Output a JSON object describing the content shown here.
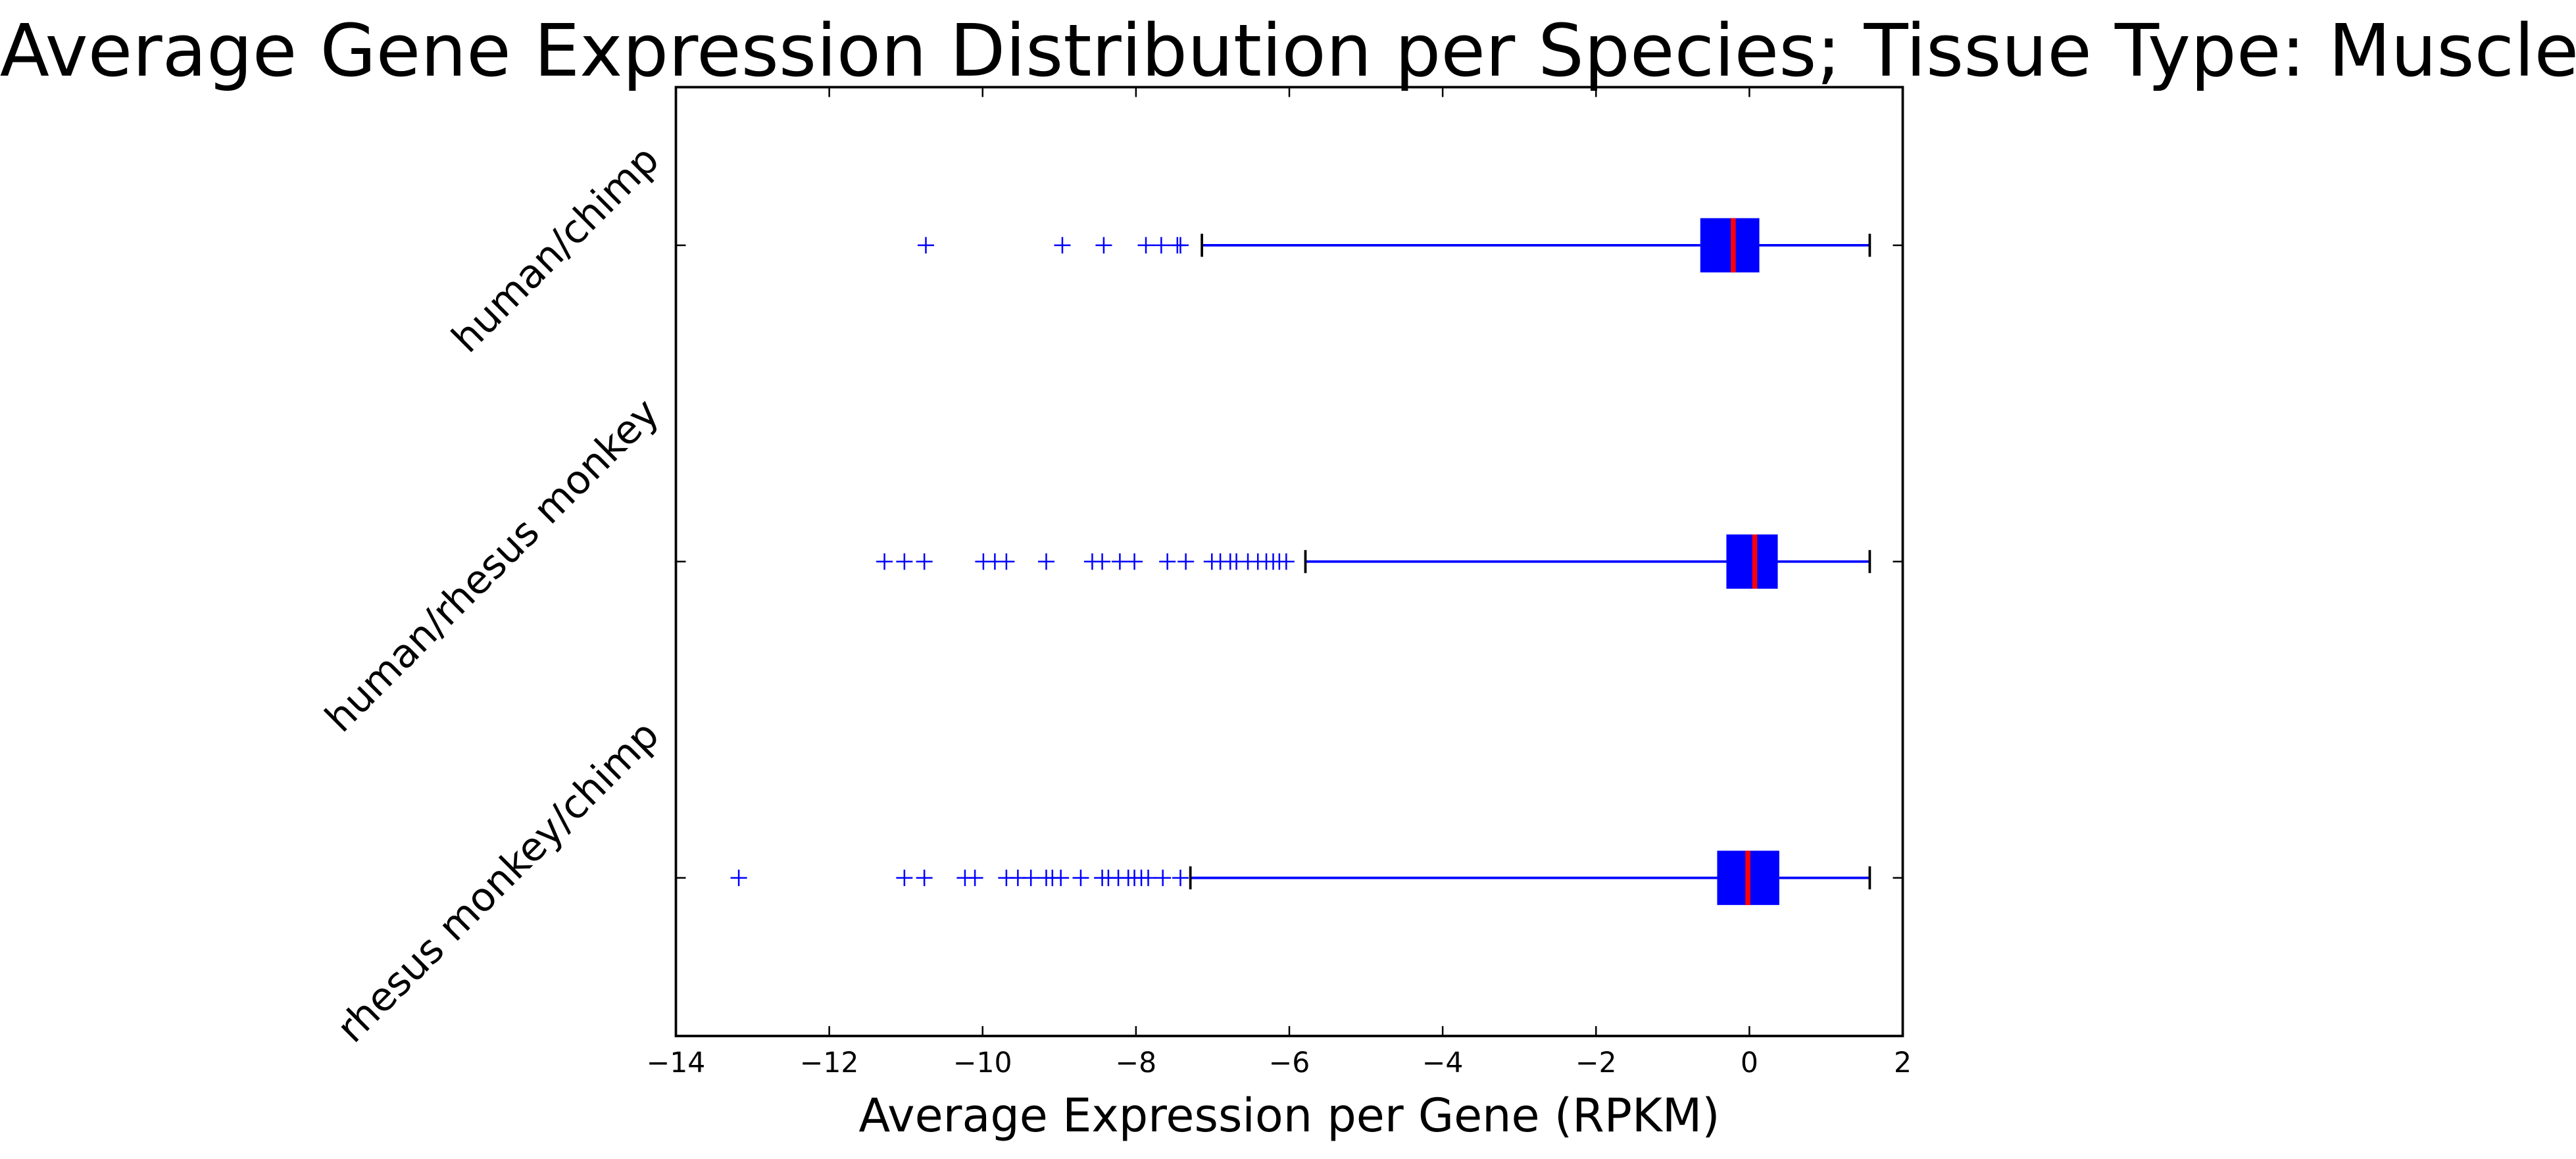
{
  "chart_data": {
    "type": "boxplot",
    "title": "Average Gene Expression Distribution per Species; Tissue Type: Muscle",
    "xlabel": "Average Expression per Gene (RPKM)",
    "categories": [
      "human/chimp",
      "human/rhesus monkey",
      "rhesus monkey/chimp"
    ],
    "boxes": [
      {
        "whislo": -7.14,
        "q1": -0.64,
        "med": -0.21,
        "q3": 0.13,
        "whishi": 1.57,
        "fliers": [
          -10.74,
          -8.96,
          -8.42,
          -7.87,
          -7.67,
          -7.46,
          -7.42
        ]
      },
      {
        "whislo": -5.79,
        "q1": -0.3,
        "med": 0.07,
        "q3": 0.37,
        "whishi": 1.57,
        "fliers": [
          -11.28,
          -11.02,
          -10.76,
          -9.99,
          -9.84,
          -9.69,
          -9.17,
          -8.57,
          -8.44,
          -8.21,
          -8.02,
          -7.59,
          -7.35,
          -7.01,
          -6.9,
          -6.77,
          -6.69,
          -6.54,
          -6.41,
          -6.3,
          -6.21,
          -6.13,
          -6.04
        ]
      },
      {
        "whislo": -7.29,
        "q1": -0.42,
        "med": -0.02,
        "q3": 0.39,
        "whishi": 1.57,
        "fliers": [
          -13.18,
          -11.02,
          -10.76,
          -10.23,
          -10.1,
          -9.69,
          -9.54,
          -9.37,
          -9.17,
          -9.09,
          -8.98,
          -8.72,
          -8.44,
          -8.36,
          -8.23,
          -8.1,
          -8.02,
          -7.93,
          -7.84,
          -7.65,
          -7.42
        ]
      }
    ],
    "xlim": [
      -14,
      2
    ],
    "xticks": [
      {
        "value": -14,
        "label": "−14"
      },
      {
        "value": -12,
        "label": "−12"
      },
      {
        "value": -10,
        "label": "−10"
      },
      {
        "value": -8,
        "label": "−8"
      },
      {
        "value": -6,
        "label": "−6"
      },
      {
        "value": -4,
        "label": "−4"
      },
      {
        "value": -2,
        "label": "−2"
      },
      0,
      2
    ],
    "box_color": "#0000ff",
    "median_color": "#ff0000",
    "flier_color": "#0000ff",
    "cap_color": "#000000"
  }
}
